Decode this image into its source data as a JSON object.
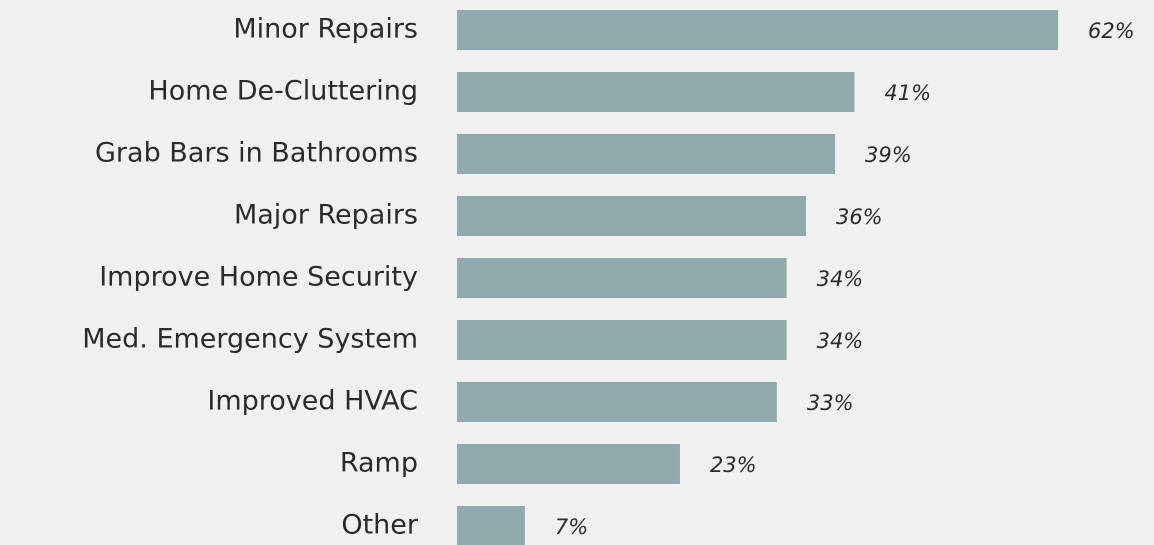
{
  "chart_data": {
    "type": "bar",
    "orientation": "horizontal",
    "categories": [
      "Minor Repairs",
      "Home De-Cluttering",
      "Grab Bars in Bathrooms",
      "Major Repairs",
      "Improve Home Security",
      "Med. Emergency System",
      "Improved HVAC",
      "Ramp",
      "Other"
    ],
    "values": [
      62,
      41,
      39,
      36,
      34,
      34,
      33,
      23,
      7
    ],
    "value_labels": [
      "62%",
      "41%",
      "39%",
      "36%",
      "34%",
      "34%",
      "33%",
      "23%",
      "7%"
    ],
    "color": "#90a9ad"
  }
}
